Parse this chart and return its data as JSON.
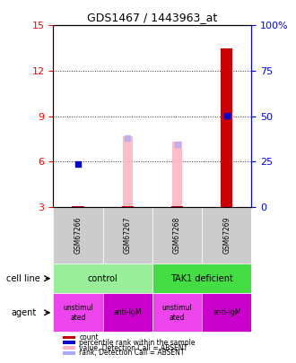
{
  "title": "GDS1467 / 1443963_at",
  "samples": [
    "GSM67266",
    "GSM67267",
    "GSM67268",
    "GSM67269"
  ],
  "ylim_left": [
    3,
    15
  ],
  "ylim_right": [
    0,
    100
  ],
  "yticks_left": [
    3,
    6,
    9,
    12,
    15
  ],
  "yticks_right": [
    0,
    25,
    50,
    75,
    100
  ],
  "ytick_labels_right": [
    "0",
    "25",
    "50",
    "75",
    "100%"
  ],
  "red_bar_values": [
    3.05,
    3.05,
    3.05,
    13.5
  ],
  "red_bar_bottom": [
    3,
    3,
    3,
    3
  ],
  "blue_dot_values": [
    5.85,
    null,
    null,
    9.05
  ],
  "pink_bar_values": [
    null,
    7.7,
    7.3,
    null
  ],
  "pink_bar_bottom": [
    null,
    3,
    3,
    null
  ],
  "lightblue_dot_values": [
    null,
    7.55,
    7.15,
    null
  ],
  "cell_line_labels": [
    [
      "control",
      2
    ],
    [
      "TAK1 deficient",
      2
    ]
  ],
  "agent_labels": [
    "unstimul\nated",
    "anti-IgM",
    "unstimul\nated",
    "anti-IgM"
  ],
  "cell_line_colors": [
    "#90EE90",
    "#90EE90",
    "#00CC44",
    "#00CC44"
  ],
  "agent_colors": [
    "#CC44CC",
    "#CC44CC",
    "#CC44CC",
    "#CC44CC"
  ],
  "legend_items": [
    {
      "color": "#CC0000",
      "label": "count"
    },
    {
      "color": "#0000CC",
      "label": "percentile rank within the sample"
    },
    {
      "color": "#FFB6C1",
      "label": "value, Detection Call = ABSENT"
    },
    {
      "color": "#AAAAFF",
      "label": "rank, Detection Call = ABSENT"
    }
  ],
  "bar_width": 0.4,
  "red_bar_color": "#CC0000",
  "pink_bar_color": "#FFB6C1",
  "blue_dot_color": "#0000CC",
  "lightblue_dot_color": "#AAAAFF",
  "cell_line_green_control": "#90EE90",
  "cell_line_green_tak1": "#44DD44",
  "agent_magenta": "#DD44DD",
  "agent_magenta_dark": "#BB00BB"
}
